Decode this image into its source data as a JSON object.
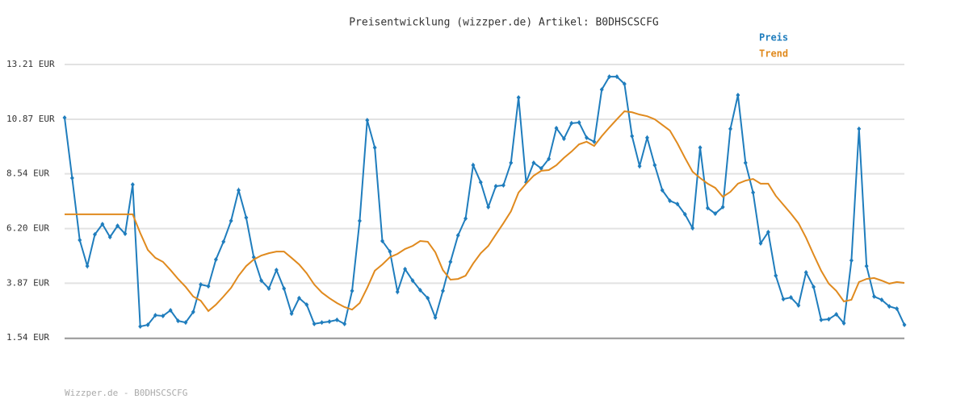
{
  "chart_data": {
    "type": "line",
    "title": "Preisentwicklung (wizzper.de) Artikel: B0DHSCSCFG",
    "footer": "Wizzper.de - B0DHSCSCFG",
    "ylim": [
      1.54,
      13.21
    ],
    "yticks": [
      {
        "value": 1.54,
        "label": "1.54 EUR"
      },
      {
        "value": 3.87,
        "label": "3.87 EUR"
      },
      {
        "value": 6.2,
        "label": "6.20 EUR"
      },
      {
        "value": 8.54,
        "label": "8.54 EUR"
      },
      {
        "value": 10.87,
        "label": "10.87 EUR"
      },
      {
        "value": 13.21,
        "label": "13.21 EUR"
      }
    ],
    "grid": true,
    "legend": "top-right",
    "series": [
      {
        "name": "Preis",
        "color": "#1f7dbd",
        "markers": true,
        "values": [
          10.94,
          8.36,
          5.71,
          4.6,
          5.95,
          6.39,
          5.84,
          6.32,
          5.98,
          8.08,
          2.02,
          2.09,
          2.5,
          2.47,
          2.71,
          2.26,
          2.19,
          2.64,
          3.81,
          3.74,
          4.88,
          5.64,
          6.53,
          7.84,
          6.67,
          4.98,
          3.98,
          3.64,
          4.43,
          3.64,
          2.57,
          3.23,
          2.95,
          2.13,
          2.19,
          2.23,
          2.3,
          2.13,
          3.54,
          6.53,
          10.83,
          9.66,
          5.67,
          5.22,
          3.5,
          4.47,
          3.98,
          3.57,
          3.23,
          2.4,
          3.54,
          4.78,
          5.91,
          6.63,
          8.91,
          8.18,
          7.12,
          8.01,
          8.05,
          9.01,
          11.8,
          8.18,
          9.01,
          8.77,
          9.18,
          10.49,
          10.04,
          10.7,
          10.73,
          10.08,
          9.91,
          12.14,
          12.69,
          12.69,
          12.38,
          10.15,
          8.87,
          10.08,
          8.91,
          7.84,
          7.39,
          7.25,
          6.81,
          6.22,
          9.66,
          7.08,
          6.84,
          7.12,
          10.46,
          11.9,
          9.01,
          7.74,
          5.57,
          6.05,
          4.19,
          3.19,
          3.26,
          2.92,
          4.33,
          3.71,
          2.3,
          2.33,
          2.54,
          2.16,
          4.84,
          10.46,
          4.6,
          3.3,
          3.16,
          2.88,
          2.78,
          2.09
        ]
      },
      {
        "name": "Trend",
        "color": "#e08a1e",
        "markers": false,
        "values": [
          6.81,
          6.81,
          6.81,
          6.81,
          6.81,
          6.81,
          6.81,
          6.81,
          6.81,
          6.81,
          6.01,
          5.29,
          4.95,
          4.78,
          4.43,
          4.05,
          3.71,
          3.3,
          3.12,
          2.68,
          2.95,
          3.3,
          3.67,
          4.19,
          4.6,
          4.88,
          5.05,
          5.15,
          5.22,
          5.22,
          4.95,
          4.67,
          4.29,
          3.81,
          3.47,
          3.23,
          3.02,
          2.85,
          2.74,
          3.02,
          3.67,
          4.4,
          4.67,
          4.98,
          5.12,
          5.33,
          5.46,
          5.67,
          5.64,
          5.19,
          4.43,
          4.02,
          4.05,
          4.19,
          4.71,
          5.15,
          5.46,
          5.95,
          6.43,
          6.94,
          7.74,
          8.12,
          8.46,
          8.67,
          8.7,
          8.91,
          9.22,
          9.49,
          9.8,
          9.91,
          9.73,
          10.15,
          10.52,
          10.87,
          11.21,
          11.17,
          11.07,
          11.0,
          10.87,
          10.63,
          10.39,
          9.84,
          9.22,
          8.63,
          8.36,
          8.12,
          7.94,
          7.56,
          7.77,
          8.12,
          8.25,
          8.32,
          8.12,
          8.12,
          7.6,
          7.22,
          6.84,
          6.43,
          5.81,
          5.09,
          4.4,
          3.85,
          3.54,
          3.09,
          3.16,
          3.92,
          4.05,
          4.09,
          3.98,
          3.85,
          3.92,
          3.88
        ]
      }
    ]
  }
}
